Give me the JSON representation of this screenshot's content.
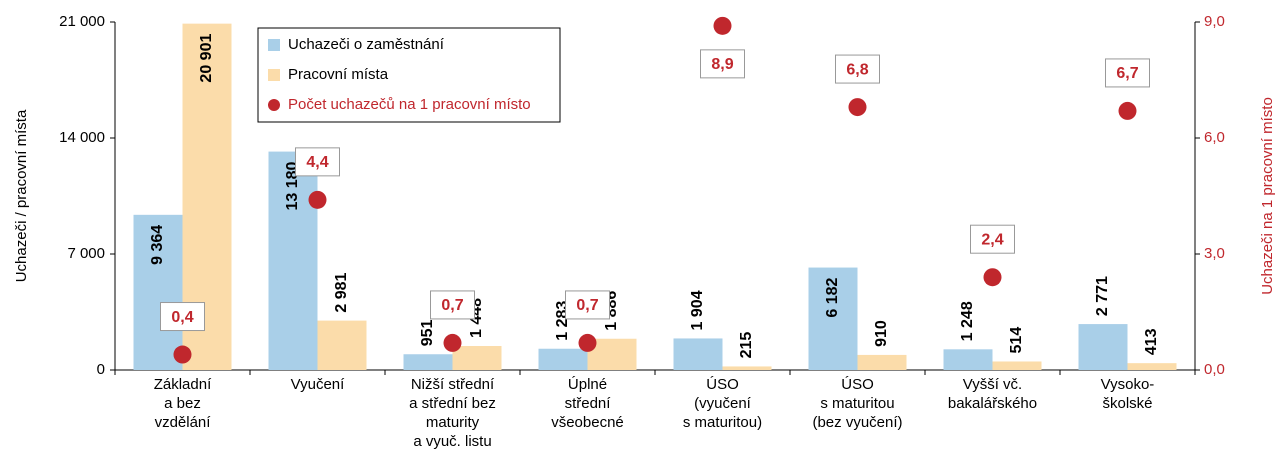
{
  "chart_data": {
    "type": "bar",
    "y_label": "Uchazeči / pracovní místa",
    "y2_label": "Uchazeči na 1 pracovní místo",
    "categories": [
      [
        "Základní",
        "a bez",
        "vzdělání"
      ],
      [
        "Vyučení"
      ],
      [
        "Nižší střední",
        "a střední bez",
        "maturity",
        "a vyuč. listu"
      ],
      [
        "Úplné",
        "střední",
        "všeobecné"
      ],
      [
        "ÚSO",
        "(vyučení",
        "s maturitou)"
      ],
      [
        "ÚSO",
        "s maturitou",
        "(bez vyučení)"
      ],
      [
        "Vyšší vč.",
        "bakalářského"
      ],
      [
        "Vysoko-",
        "školské"
      ]
    ],
    "series": [
      {
        "name": "Uchazeči o zaměstnání",
        "type": "bar",
        "color": "#a9cfe8",
        "values": [
          9364,
          13180,
          951,
          1283,
          1904,
          6182,
          1248,
          2771
        ],
        "value_labels": [
          "9 364",
          "13 180",
          "951",
          "1 283",
          "1 904",
          "6 182",
          "1 248",
          "2 771"
        ]
      },
      {
        "name": "Pracovní místa",
        "type": "bar",
        "color": "#fbdcaa",
        "values": [
          20901,
          2981,
          1448,
          1886,
          215,
          910,
          514,
          413
        ],
        "value_labels": [
          "20 901",
          "2 981",
          "1 448",
          "1 886",
          "215",
          "910",
          "514",
          "413"
        ]
      },
      {
        "name": "Počet uchazečů na 1 pracovní místo",
        "type": "scatter",
        "axis": "y2",
        "color": "#c0272d",
        "values": [
          0.4,
          4.4,
          0.7,
          0.7,
          8.9,
          6.8,
          2.4,
          6.7
        ],
        "value_labels": [
          "0,4",
          "4,4",
          "0,7",
          "0,7",
          "8,9",
          "6,8",
          "2,4",
          "6,7"
        ]
      }
    ],
    "ylim": [
      0,
      21000
    ],
    "yticks": [
      0,
      {
        "value": 7000,
        "label": "7 000"
      },
      {
        "value": 14000,
        "label": "14 000"
      },
      {
        "value": 21000,
        "label": "21 000"
      }
    ],
    "y2lim": [
      0,
      9
    ],
    "y2ticks": [
      {
        "value": 0,
        "label": "0,0"
      },
      {
        "value": 3,
        "label": "3,0"
      },
      {
        "value": 6,
        "label": "6,0"
      },
      {
        "value": 9,
        "label": "9,0"
      }
    ],
    "legend": "top-left"
  }
}
